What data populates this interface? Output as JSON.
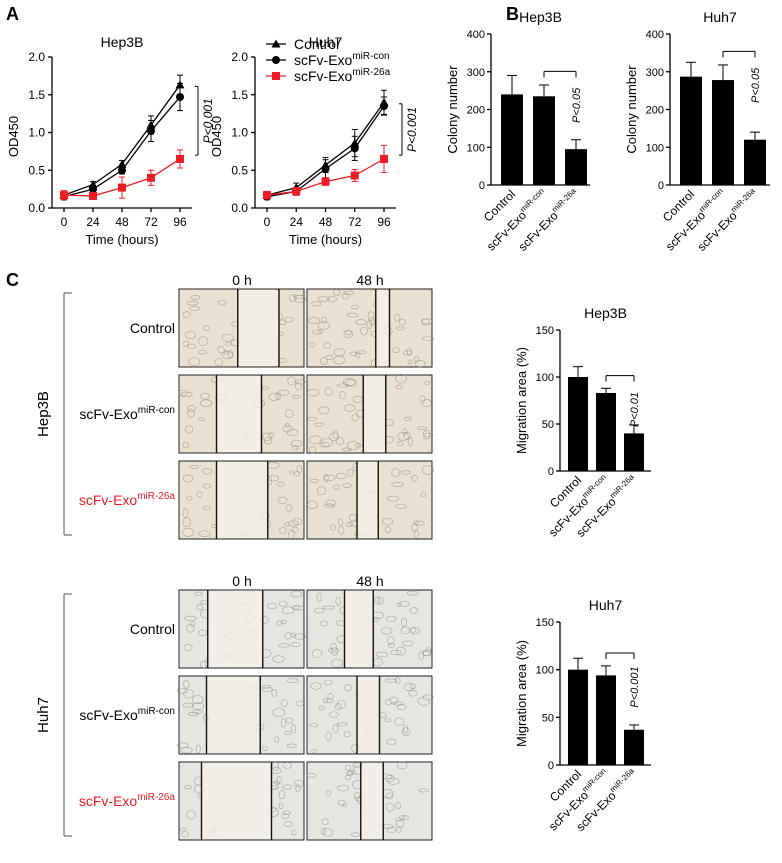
{
  "panels": {
    "a": "A",
    "b": "B",
    "c": "C"
  },
  "colors": {
    "black": "#000000",
    "red": "#ee1c24",
    "micro_bg_hep": "#e9e1d2",
    "micro_bg_huh": "#e6e6e3"
  },
  "labels": {
    "control": "Control",
    "exo_base": "scFv-Exo",
    "con_sup": "miR-con",
    "mir26_sup": "miR-26a",
    "hep3b": "Hep3B",
    "huh7": "Huh7",
    "h0": "0 h",
    "h48": "48 h"
  },
  "chart_data": [
    {
      "id": "line_hep3b",
      "type": "line",
      "title": "Hep3B",
      "xlabel": "Time (hours)",
      "ylabel": "OD450",
      "x": [
        0,
        24,
        48,
        72,
        96
      ],
      "ylim": [
        0,
        2.0
      ],
      "yticks": [
        "0.0",
        "0.5",
        "1.0",
        "1.5",
        "2.0"
      ],
      "xticks": [
        "0",
        "24",
        "48",
        "72",
        "96"
      ],
      "series": [
        {
          "name": "Control",
          "marker": "triangle",
          "color": "#000000",
          "values": [
            0.17,
            0.31,
            0.58,
            1.1,
            1.63
          ],
          "err": [
            0.04,
            0.04,
            0.05,
            0.12,
            0.13
          ]
        },
        {
          "name": "scFv-Exo miR-con",
          "marker": "circle",
          "color": "#000000",
          "values": [
            0.15,
            0.25,
            0.5,
            1.02,
            1.47
          ],
          "err": [
            0.04,
            0.04,
            0.05,
            0.14,
            0.18
          ]
        },
        {
          "name": "scFv-Exo miR-26a",
          "marker": "square",
          "color": "#ee1c24",
          "values": [
            0.17,
            0.16,
            0.27,
            0.4,
            0.65
          ],
          "err": [
            0.06,
            0.04,
            0.14,
            0.1,
            0.12
          ]
        }
      ],
      "annotation": "P<0.001"
    },
    {
      "id": "line_huh7",
      "type": "line",
      "title": "Huh7",
      "xlabel": "Time (hours)",
      "ylabel": "OD450",
      "x": [
        0,
        24,
        48,
        72,
        96
      ],
      "ylim": [
        0,
        2.0
      ],
      "yticks": [
        "0.0",
        "0.5",
        "1.0",
        "1.5",
        "2.0"
      ],
      "xticks": [
        "0",
        "24",
        "48",
        "72",
        "96"
      ],
      "series": [
        {
          "name": "Control",
          "marker": "triangle",
          "color": "#000000",
          "values": [
            0.17,
            0.27,
            0.57,
            0.86,
            1.4
          ],
          "err": [
            0.04,
            0.06,
            0.1,
            0.18,
            0.16
          ]
        },
        {
          "name": "scFv-Exo miR-con",
          "marker": "circle",
          "color": "#000000",
          "values": [
            0.15,
            0.22,
            0.52,
            0.79,
            1.35
          ],
          "err": [
            0.04,
            0.05,
            0.12,
            0.16,
            0.12
          ]
        },
        {
          "name": "scFv-Exo miR-26a",
          "marker": "square",
          "color": "#ee1c24",
          "values": [
            0.17,
            0.22,
            0.35,
            0.43,
            0.65
          ],
          "err": [
            0.05,
            0.05,
            0.05,
            0.08,
            0.18
          ]
        }
      ],
      "annotation": "P<0.001",
      "legend": [
        "Control",
        "scFv-Exo miR-con",
        "scFv-Exo miR-26a"
      ]
    },
    {
      "id": "colony_hep3b",
      "type": "bar",
      "title": "Hep3B",
      "ylabel": "Colony number",
      "categories": [
        "Control",
        "scFv-Exo miR-con",
        "scFv-Exo miR-26a"
      ],
      "values": [
        240,
        235,
        95
      ],
      "err": [
        50,
        30,
        25
      ],
      "ylim": [
        0,
        400
      ],
      "yticks": [
        "0",
        "100",
        "200",
        "300",
        "400"
      ],
      "annotation": "P<0.05"
    },
    {
      "id": "colony_huh7",
      "type": "bar",
      "title": "Huh7",
      "ylabel": "Colony number",
      "categories": [
        "Control",
        "scFv-Exo miR-con",
        "scFv-Exo miR-26a"
      ],
      "values": [
        287,
        278,
        120
      ],
      "err": [
        38,
        40,
        20
      ],
      "ylim": [
        0,
        400
      ],
      "yticks": [
        "0",
        "100",
        "200",
        "300",
        "400"
      ],
      "annotation": "P<0.05"
    },
    {
      "id": "migration_hep3b",
      "type": "bar",
      "title": "Hep3B",
      "ylabel": "Migration area (%)",
      "categories": [
        "Control",
        "scFv-Exo miR-con",
        "scFv-Exo miR-26a"
      ],
      "values": [
        100,
        83,
        40
      ],
      "err": [
        11,
        5,
        9
      ],
      "ylim": [
        0,
        150
      ],
      "yticks": [
        "0",
        "50",
        "100",
        "150"
      ],
      "annotation": "P<0.01"
    },
    {
      "id": "migration_huh7",
      "type": "bar",
      "title": "Huh7",
      "ylabel": "Migration area (%)",
      "categories": [
        "Control",
        "scFv-Exo miR-con",
        "scFv-Exo miR-26a"
      ],
      "values": [
        100,
        94,
        37
      ],
      "err": [
        12,
        10,
        5
      ],
      "ylim": [
        0,
        150
      ],
      "yticks": [
        "0",
        "50",
        "100",
        "150"
      ],
      "annotation": "P<0.001"
    }
  ],
  "micrographs": {
    "hep3b": [
      {
        "row": "Control",
        "gap0": [
          0.47,
          0.8
        ],
        "gap48": [
          0.55,
          0.66
        ]
      },
      {
        "row": "scFv-Exo miR-con",
        "gap0": [
          0.3,
          0.66
        ],
        "gap48": [
          0.45,
          0.63
        ]
      },
      {
        "row": "scFv-Exo miR-26a",
        "gap0": [
          0.3,
          0.71
        ],
        "gap48": [
          0.4,
          0.57
        ]
      }
    ],
    "huh7": [
      {
        "row": "Control",
        "gap0": [
          0.23,
          0.67
        ],
        "gap48": [
          0.3,
          0.53
        ]
      },
      {
        "row": "scFv-Exo miR-con",
        "gap0": [
          0.22,
          0.65
        ],
        "gap48": [
          0.4,
          0.58
        ]
      },
      {
        "row": "scFv-Exo miR-26a",
        "gap0": [
          0.18,
          0.74
        ],
        "gap48": [
          0.43,
          0.61
        ]
      }
    ]
  }
}
